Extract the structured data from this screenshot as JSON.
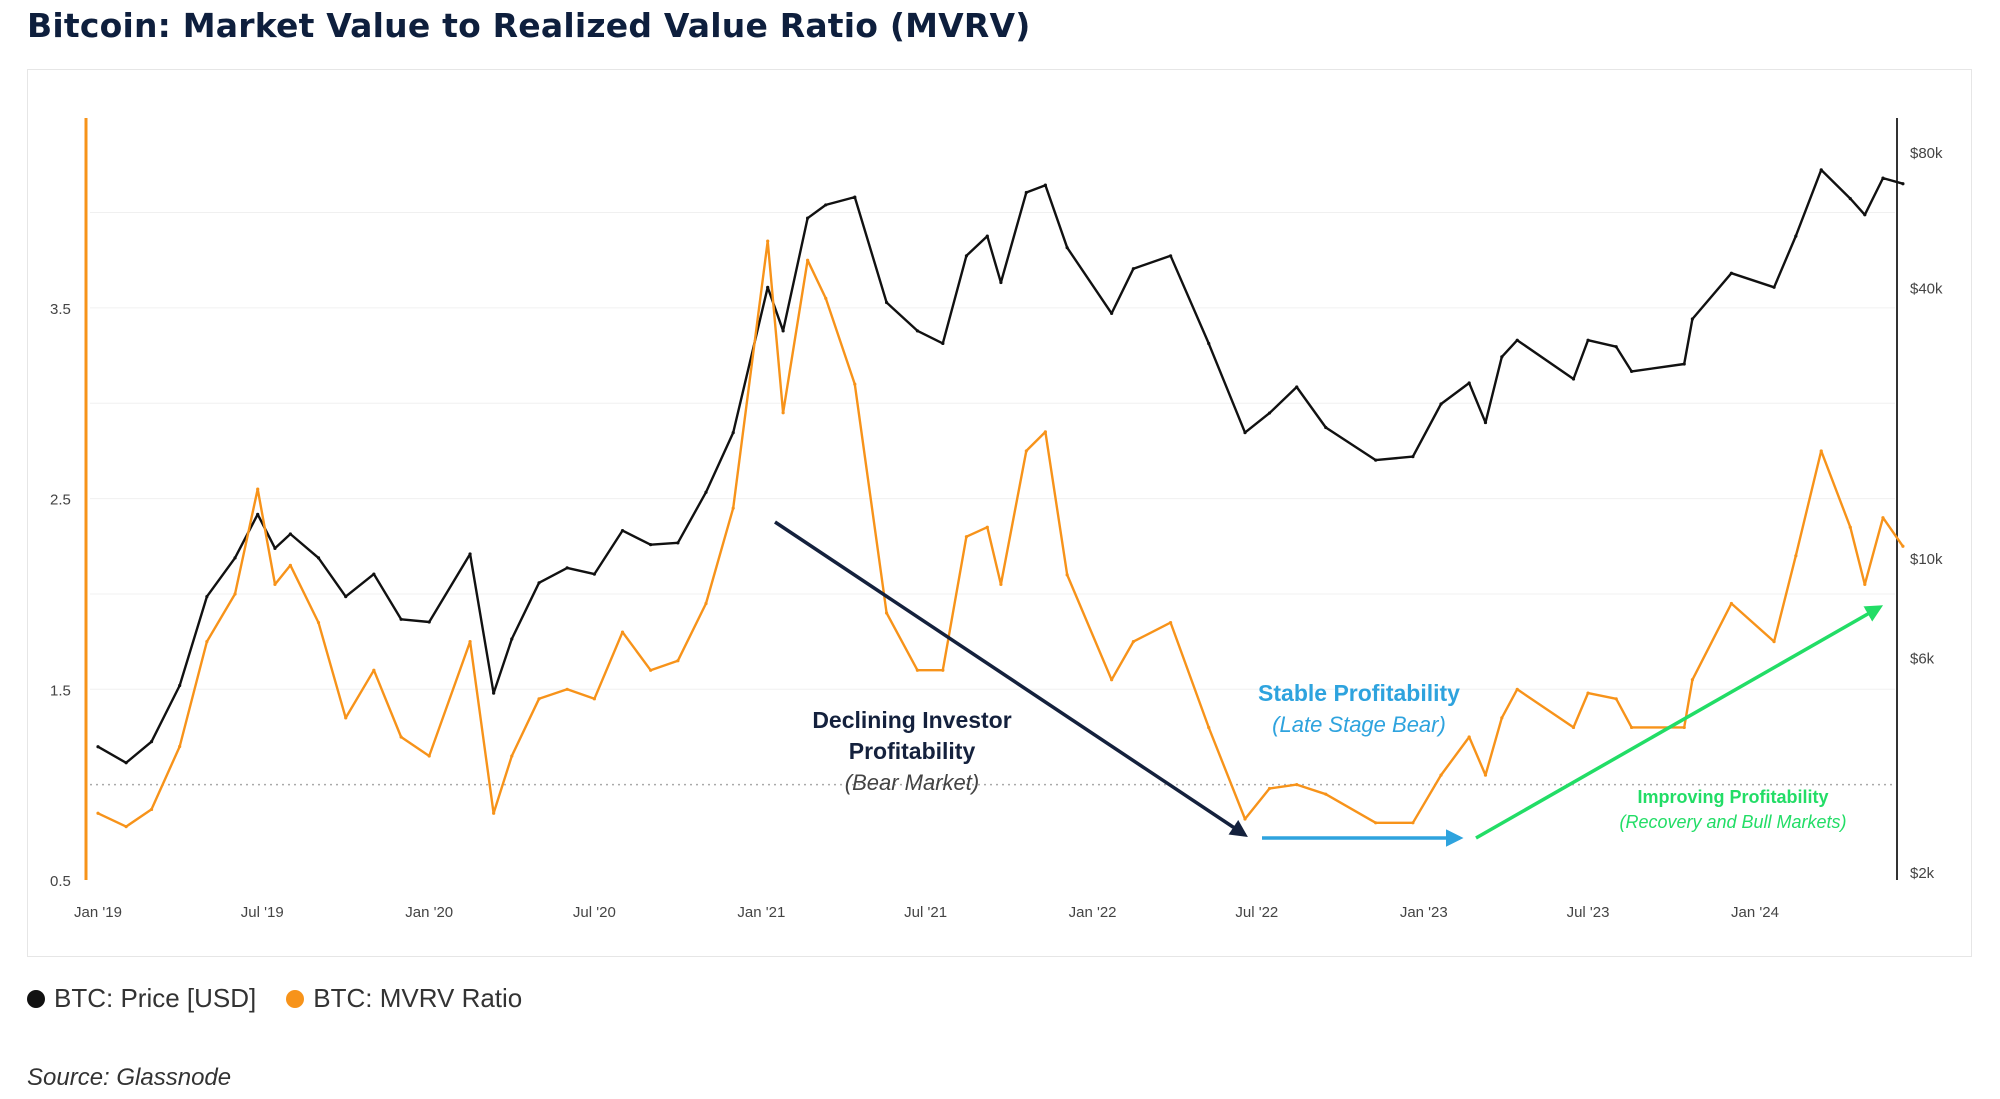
{
  "title": "Bitcoin: Market Value to Realized Value Ratio (MVRV)",
  "source": "Source: Glassnode",
  "legend": [
    {
      "label": "BTC: Price [USD]",
      "color": "#111111"
    },
    {
      "label": "BTC: MVRV Ratio",
      "color": "#f7931a"
    }
  ],
  "chart_data": {
    "type": "line",
    "x_tick_labels": [
      "Jan '19",
      "Jul '19",
      "Jan '20",
      "Jul '20",
      "Jan '21",
      "Jul '21",
      "Jan '22",
      "Jul '22",
      "Jan '23",
      "Jul '23",
      "Jan '24"
    ],
    "left_axis": {
      "tick_labels": [
        "0.5",
        "1.5",
        "2.5",
        "3.5"
      ],
      "color": "#f7931a"
    },
    "right_axis": {
      "tick_labels": [
        "$2k",
        "$6k",
        "$10k",
        "$40k",
        "$80k"
      ],
      "scale": "log",
      "color": "#333333"
    },
    "reference_line": {
      "y": 1.0,
      "style": "dotted"
    },
    "series": [
      {
        "name": "BTC: Price [USD]",
        "color": "#111111",
        "axis": "right",
        "points": [
          [
            "2019-01-01",
            3800
          ],
          [
            "2019-02-01",
            3500
          ],
          [
            "2019-03-01",
            3900
          ],
          [
            "2019-04-01",
            5200
          ],
          [
            "2019-05-01",
            8200
          ],
          [
            "2019-06-01",
            10000
          ],
          [
            "2019-06-26",
            12500
          ],
          [
            "2019-07-15",
            10500
          ],
          [
            "2019-08-01",
            11300
          ],
          [
            "2019-09-01",
            10000
          ],
          [
            "2019-10-01",
            8200
          ],
          [
            "2019-11-01",
            9200
          ],
          [
            "2019-12-01",
            7300
          ],
          [
            "2020-01-01",
            7200
          ],
          [
            "2020-02-15",
            10200
          ],
          [
            "2020-03-12",
            5000
          ],
          [
            "2020-04-01",
            6600
          ],
          [
            "2020-05-01",
            8800
          ],
          [
            "2020-06-01",
            9500
          ],
          [
            "2020-07-01",
            9200
          ],
          [
            "2020-08-01",
            11500
          ],
          [
            "2020-09-01",
            10700
          ],
          [
            "2020-10-01",
            10800
          ],
          [
            "2020-11-01",
            14000
          ],
          [
            "2020-12-01",
            19000
          ],
          [
            "2021-01-08",
            40000
          ],
          [
            "2021-01-25",
            32000
          ],
          [
            "2021-02-21",
            57000
          ],
          [
            "2021-03-13",
            61000
          ],
          [
            "2021-04-14",
            63500
          ],
          [
            "2021-05-19",
            37000
          ],
          [
            "2021-06-22",
            32000
          ],
          [
            "2021-07-20",
            30000
          ],
          [
            "2021-08-15",
            47000
          ],
          [
            "2021-09-07",
            52000
          ],
          [
            "2021-09-22",
            41000
          ],
          [
            "2021-10-20",
            65000
          ],
          [
            "2021-11-10",
            67500
          ],
          [
            "2021-12-04",
            49000
          ],
          [
            "2022-01-22",
            35000
          ],
          [
            "2022-02-15",
            44000
          ],
          [
            "2022-03-28",
            47000
          ],
          [
            "2022-05-09",
            30000
          ],
          [
            "2022-06-18",
            19000
          ],
          [
            "2022-07-15",
            21000
          ],
          [
            "2022-08-14",
            24000
          ],
          [
            "2022-09-15",
            19500
          ],
          [
            "2022-11-09",
            16500
          ],
          [
            "2022-12-20",
            16800
          ],
          [
            "2023-01-20",
            22000
          ],
          [
            "2023-02-20",
            24500
          ],
          [
            "2023-03-10",
            20000
          ],
          [
            "2023-03-28",
            28000
          ],
          [
            "2023-04-14",
            30500
          ],
          [
            "2023-06-15",
            25000
          ],
          [
            "2023-07-01",
            30500
          ],
          [
            "2023-08-01",
            29500
          ],
          [
            "2023-08-18",
            26000
          ],
          [
            "2023-10-15",
            27000
          ],
          [
            "2023-10-24",
            34000
          ],
          [
            "2023-12-06",
            43000
          ],
          [
            "2024-01-22",
            40000
          ],
          [
            "2024-02-15",
            52000
          ],
          [
            "2024-03-14",
            73000
          ],
          [
            "2024-04-15",
            63000
          ],
          [
            "2024-05-01",
            58000
          ],
          [
            "2024-05-21",
            70000
          ],
          [
            "2024-06-12",
            68000
          ]
        ]
      },
      {
        "name": "BTC: MVRV Ratio",
        "color": "#f7931a",
        "axis": "left",
        "points": [
          [
            "2019-01-01",
            0.85
          ],
          [
            "2019-02-01",
            0.78
          ],
          [
            "2019-03-01",
            0.87
          ],
          [
            "2019-04-01",
            1.2
          ],
          [
            "2019-05-01",
            1.75
          ],
          [
            "2019-06-01",
            2.0
          ],
          [
            "2019-06-26",
            2.55
          ],
          [
            "2019-07-15",
            2.05
          ],
          [
            "2019-08-01",
            2.15
          ],
          [
            "2019-09-01",
            1.85
          ],
          [
            "2019-10-01",
            1.35
          ],
          [
            "2019-11-01",
            1.6
          ],
          [
            "2019-12-01",
            1.25
          ],
          [
            "2020-01-01",
            1.15
          ],
          [
            "2020-02-15",
            1.75
          ],
          [
            "2020-03-12",
            0.85
          ],
          [
            "2020-04-01",
            1.15
          ],
          [
            "2020-05-01",
            1.45
          ],
          [
            "2020-06-01",
            1.5
          ],
          [
            "2020-07-01",
            1.45
          ],
          [
            "2020-08-01",
            1.8
          ],
          [
            "2020-09-01",
            1.6
          ],
          [
            "2020-10-01",
            1.65
          ],
          [
            "2020-11-01",
            1.95
          ],
          [
            "2020-12-01",
            2.45
          ],
          [
            "2021-01-08",
            3.85
          ],
          [
            "2021-01-25",
            2.95
          ],
          [
            "2021-02-21",
            3.75
          ],
          [
            "2021-03-13",
            3.55
          ],
          [
            "2021-04-14",
            3.1
          ],
          [
            "2021-05-19",
            1.9
          ],
          [
            "2021-06-22",
            1.6
          ],
          [
            "2021-07-20",
            1.6
          ],
          [
            "2021-08-15",
            2.3
          ],
          [
            "2021-09-07",
            2.35
          ],
          [
            "2021-09-22",
            2.05
          ],
          [
            "2021-10-20",
            2.75
          ],
          [
            "2021-11-10",
            2.85
          ],
          [
            "2021-12-04",
            2.1
          ],
          [
            "2022-01-22",
            1.55
          ],
          [
            "2022-02-15",
            1.75
          ],
          [
            "2022-03-28",
            1.85
          ],
          [
            "2022-05-09",
            1.3
          ],
          [
            "2022-06-18",
            0.82
          ],
          [
            "2022-07-15",
            0.98
          ],
          [
            "2022-08-14",
            1.0
          ],
          [
            "2022-09-15",
            0.95
          ],
          [
            "2022-11-09",
            0.8
          ],
          [
            "2022-12-20",
            0.8
          ],
          [
            "2023-01-20",
            1.05
          ],
          [
            "2023-02-20",
            1.25
          ],
          [
            "2023-03-10",
            1.05
          ],
          [
            "2023-03-28",
            1.35
          ],
          [
            "2023-04-14",
            1.5
          ],
          [
            "2023-06-15",
            1.3
          ],
          [
            "2023-07-01",
            1.48
          ],
          [
            "2023-08-01",
            1.45
          ],
          [
            "2023-08-18",
            1.3
          ],
          [
            "2023-10-15",
            1.3
          ],
          [
            "2023-10-24",
            1.55
          ],
          [
            "2023-12-06",
            1.95
          ],
          [
            "2024-01-22",
            1.75
          ],
          [
            "2024-02-15",
            2.2
          ],
          [
            "2024-03-14",
            2.75
          ],
          [
            "2024-04-15",
            2.35
          ],
          [
            "2024-05-01",
            2.05
          ],
          [
            "2024-05-21",
            2.4
          ],
          [
            "2024-06-12",
            2.25
          ]
        ]
      }
    ],
    "annotations": [
      {
        "lines": [
          "Declining Investor",
          "Profitability"
        ],
        "note": "(Bear Market)",
        "color": "#14213d"
      },
      {
        "lines": [
          "Stable Profitability"
        ],
        "note": "(Late Stage Bear)",
        "color": "#2ea3de"
      },
      {
        "lines": [
          "Improving Profitability"
        ],
        "note": "(Recovery and Bull Markets)",
        "color": "#22dd66"
      }
    ]
  }
}
